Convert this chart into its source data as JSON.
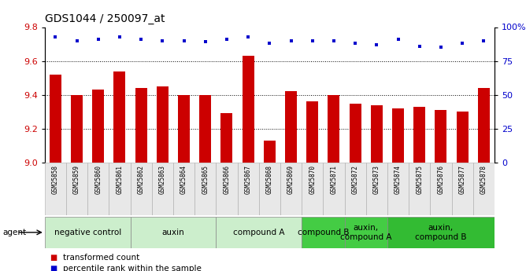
{
  "title": "GDS1044 / 250097_at",
  "samples": [
    "GSM25858",
    "GSM25859",
    "GSM25860",
    "GSM25861",
    "GSM25862",
    "GSM25863",
    "GSM25864",
    "GSM25865",
    "GSM25866",
    "GSM25867",
    "GSM25868",
    "GSM25869",
    "GSM25870",
    "GSM25871",
    "GSM25872",
    "GSM25873",
    "GSM25874",
    "GSM25875",
    "GSM25876",
    "GSM25877",
    "GSM25878"
  ],
  "bar_values": [
    9.52,
    9.4,
    9.43,
    9.54,
    9.44,
    9.45,
    9.4,
    9.4,
    9.29,
    9.63,
    9.13,
    9.42,
    9.36,
    9.4,
    9.35,
    9.34,
    9.32,
    9.33,
    9.31,
    9.3,
    9.44
  ],
  "percentile_values": [
    93,
    90,
    91,
    93,
    91,
    90,
    90,
    89,
    91,
    93,
    88,
    90,
    90,
    90,
    88,
    87,
    91,
    86,
    85,
    88,
    90
  ],
  "ylim_left": [
    9.0,
    9.8
  ],
  "ylim_right": [
    0,
    100
  ],
  "yticks_left": [
    9.0,
    9.2,
    9.4,
    9.6,
    9.8
  ],
  "yticks_right": [
    0,
    25,
    50,
    75,
    100
  ],
  "ytick_right_labels": [
    "0",
    "25",
    "50",
    "75",
    "100%"
  ],
  "bar_color": "#cc0000",
  "dot_color": "#0000cc",
  "groups": [
    {
      "label": "negative control",
      "start": 0,
      "end": 3,
      "color": "#cceecc"
    },
    {
      "label": "auxin",
      "start": 4,
      "end": 7,
      "color": "#cceecc"
    },
    {
      "label": "compound A",
      "start": 8,
      "end": 11,
      "color": "#cceecc"
    },
    {
      "label": "compound B",
      "start": 12,
      "end": 13,
      "color": "#44cc44"
    },
    {
      "label": "auxin,\ncompound A",
      "start": 14,
      "end": 15,
      "color": "#44cc44"
    },
    {
      "label": "auxin,\ncompound B",
      "start": 16,
      "end": 20,
      "color": "#33bb33"
    }
  ],
  "agent_label": "agent",
  "bg_color": "#ffffff",
  "title_fontsize": 10,
  "axis_label_fontsize": 7,
  "group_label_fontsize": 7.5,
  "legend_fontsize": 7.5
}
